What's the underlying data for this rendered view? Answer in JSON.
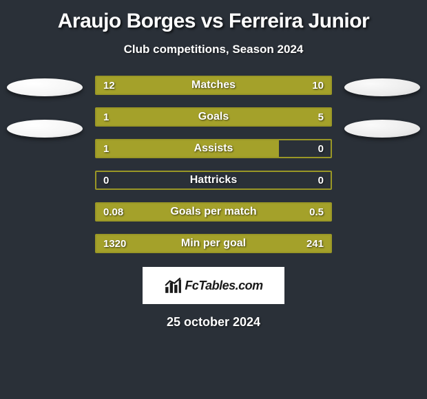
{
  "title": "Araujo Borges vs Ferreira Junior",
  "subtitle": "Club competitions, Season 2024",
  "footer_date": "25 october 2024",
  "logo_text": "FcTables.com",
  "colors": {
    "background": "#2a3038",
    "bar_fill": "#a4a12a",
    "bar_border": "#9a9726",
    "text": "#ffffff"
  },
  "stats": [
    {
      "label": "Matches",
      "left_val": "12",
      "right_val": "10",
      "left_pct": 100,
      "right_pct": 0
    },
    {
      "label": "Goals",
      "left_val": "1",
      "right_val": "5",
      "left_pct": 18,
      "right_pct": 82
    },
    {
      "label": "Assists",
      "left_val": "1",
      "right_val": "0",
      "left_pct": 78,
      "right_pct": 0
    },
    {
      "label": "Hattricks",
      "left_val": "0",
      "right_val": "0",
      "left_pct": 0,
      "right_pct": 0
    },
    {
      "label": "Goals per match",
      "left_val": "0.08",
      "right_val": "0.5",
      "left_pct": 15,
      "right_pct": 85
    },
    {
      "label": "Min per goal",
      "left_val": "1320",
      "right_val": "241",
      "left_pct": 80,
      "right_pct": 20
    }
  ]
}
